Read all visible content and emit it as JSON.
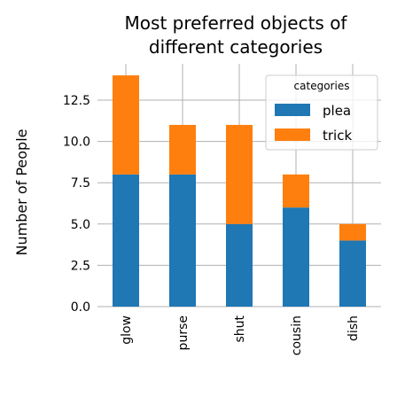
{
  "chart_data": {
    "type": "bar",
    "stacked": true,
    "title": "Most preferred objects of different categories",
    "title_lines": [
      "Most preferred objects of",
      "different categories"
    ],
    "xlabel": "",
    "ylabel": "Number of People",
    "categories": [
      "glow",
      "purse",
      "shut",
      "cousin",
      "dish"
    ],
    "series": [
      {
        "name": "plea",
        "color": "#1f77b4",
        "values": [
          8,
          8,
          5,
          6,
          4
        ]
      },
      {
        "name": "trick",
        "color": "#ff7f0e",
        "values": [
          6,
          3,
          6,
          2,
          1
        ]
      }
    ],
    "ylim": [
      0,
      14.7
    ],
    "yticks": [
      "0.0",
      "2.5",
      "5.0",
      "7.5",
      "10.0",
      "12.5"
    ],
    "ytick_values": [
      0,
      2.5,
      5,
      7.5,
      10,
      12.5
    ],
    "grid": true,
    "legend": {
      "title": "categories",
      "placement": "top-right"
    }
  }
}
